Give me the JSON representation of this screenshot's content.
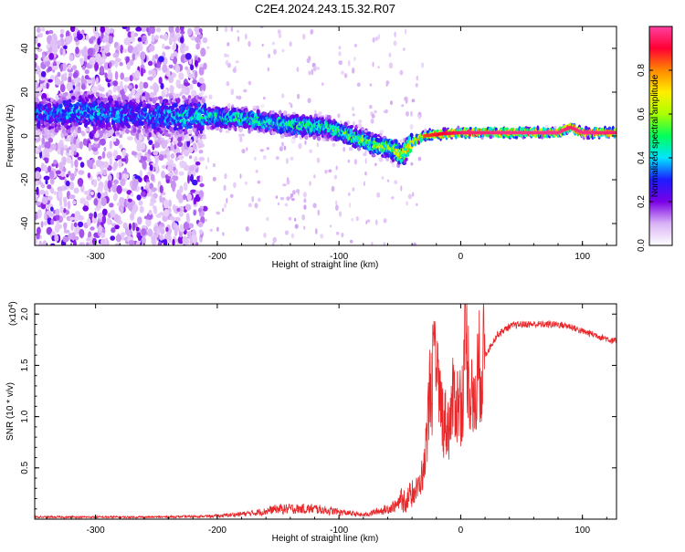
{
  "figure": {
    "title": "C2E4.2024.243.15.32.R07"
  },
  "colors": {
    "snr_line": "#e8282a",
    "axis": "#000000"
  },
  "chart_data": [
    {
      "type": "heatmap",
      "xlabel": "Height of straight line (km)",
      "ylabel": "Frequency (Hz)",
      "xlim": [
        -350,
        128
      ],
      "ylim": [
        -50,
        50
      ],
      "x_ticks": [
        -300,
        -200,
        -100,
        0,
        100
      ],
      "y_ticks": [
        -40,
        -20,
        0,
        20,
        40
      ],
      "colorbar": {
        "label": "Normalized spectral amplitude",
        "range": [
          0,
          1
        ],
        "ticks": [
          0.0,
          0.2,
          0.4,
          0.6,
          0.8
        ],
        "tick_labels": [
          "0.0",
          "0.2",
          "0.4",
          "0.6",
          "0.8"
        ],
        "colormap": [
          "#ffffff",
          "#d9b3f5",
          "#7a00e6",
          "#1c1cff",
          "#00e5ff",
          "#00ff5a",
          "#aaff00",
          "#ffee00",
          "#ff8800",
          "#ff0033",
          "#ff40a0"
        ]
      },
      "ridge": {
        "x": [
          -340,
          -300,
          -260,
          -220,
          -180,
          -140,
          -110,
          -90,
          -70,
          -55,
          -48,
          -40,
          -30,
          -15,
          0,
          40,
          80,
          90,
          100,
          128
        ],
        "freq": [
          10,
          11,
          9,
          9,
          8,
          5,
          4,
          0,
          -4,
          -6,
          -9,
          -3,
          0,
          1,
          1.5,
          1.5,
          1.5,
          4,
          1.5,
          1.5
        ],
        "amp": [
          0.35,
          0.4,
          0.35,
          0.45,
          0.5,
          0.5,
          0.5,
          0.55,
          0.6,
          0.65,
          0.8,
          0.75,
          0.85,
          0.9,
          0.95,
          0.98,
          0.98,
          0.95,
          0.98,
          0.95
        ]
      }
    },
    {
      "type": "line",
      "xlabel": "Height of straight line (km)",
      "ylabel": "SNR (10 * v/v)",
      "y_multiplier": "(x10",
      "y_multiplier_exp": "4",
      "y_multiplier_close": ")",
      "xlim": [
        -350,
        128
      ],
      "ylim": [
        0,
        2.1
      ],
      "x_ticks": [
        -300,
        -200,
        -100,
        0,
        100
      ],
      "y_ticks": [
        0.5,
        1.0,
        1.5,
        2.0
      ],
      "y_tick_labels": [
        "0.5",
        "1.0",
        "1.5",
        "2.0"
      ],
      "series": [
        {
          "x": [
            -350,
            -300,
            -250,
            -200,
            -170,
            -150,
            -120,
            -100,
            -80,
            -60,
            -50,
            -40,
            -35,
            -30,
            -25,
            -20,
            -15,
            -10,
            -5,
            0,
            5,
            10,
            15,
            20,
            30,
            40,
            50,
            60,
            70,
            80,
            90,
            100,
            110,
            120,
            128
          ],
          "y": [
            0.02,
            0.02,
            0.02,
            0.03,
            0.06,
            0.1,
            0.1,
            0.07,
            0.04,
            0.1,
            0.15,
            0.25,
            0.3,
            0.5,
            1.3,
            1.4,
            1.0,
            0.9,
            1.2,
            1.1,
            1.7,
            1.0,
            1.5,
            1.6,
            1.8,
            1.88,
            1.9,
            1.9,
            1.9,
            1.9,
            1.88,
            1.83,
            1.8,
            1.76,
            1.73
          ]
        }
      ]
    }
  ]
}
